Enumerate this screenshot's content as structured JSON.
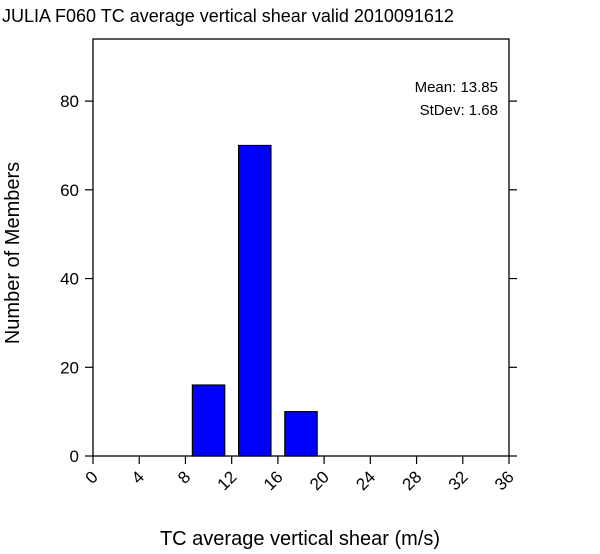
{
  "chart_data": {
    "type": "bar",
    "title": "JULIA F060 TC average vertical shear valid 2010091612",
    "xlabel": "TC average vertical shear (m/s)",
    "ylabel": "Number of Members",
    "xlim": [
      0,
      36
    ],
    "ylim": [
      0,
      94
    ],
    "xticks": [
      0,
      4,
      8,
      12,
      16,
      20,
      24,
      28,
      32,
      36
    ],
    "xtick_labels": [
      "0",
      "4",
      "8",
      "12",
      "16",
      "20",
      "24",
      "28",
      "32",
      "36"
    ],
    "yticks": [
      0,
      20,
      40,
      60,
      80
    ],
    "ytick_labels": [
      "0",
      "20",
      "40",
      "60",
      "80"
    ],
    "bins": [
      {
        "start": 8.6,
        "end": 11.4,
        "value": 16
      },
      {
        "start": 12.6,
        "end": 15.4,
        "value": 70
      },
      {
        "start": 16.6,
        "end": 19.4,
        "value": 10
      }
    ],
    "bar_color": "#0000ff",
    "grid": false,
    "stats": {
      "mean_label": "Mean: 13.85",
      "stdev_label": "StDev: 1.68"
    }
  }
}
